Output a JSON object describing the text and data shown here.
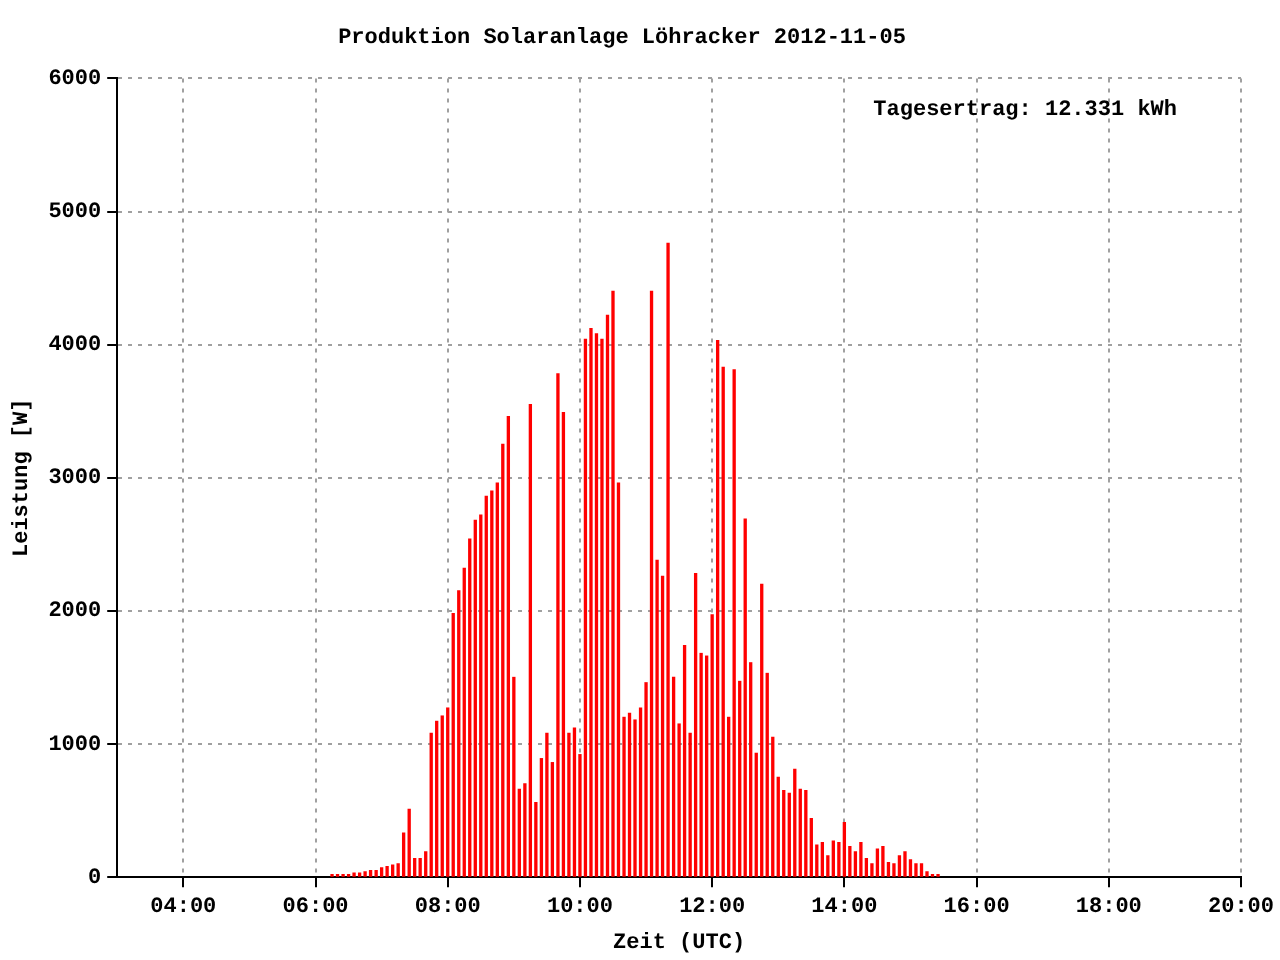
{
  "chart_data": {
    "type": "bar",
    "title": "Produktion Solaranlage Löhracker 2012-11-05",
    "xlabel": "Zeit (UTC)",
    "ylabel": "Leistung [W]",
    "annotations": [
      "Tagesertrag: 12.331 kWh"
    ],
    "x": [
      6.25,
      6.333,
      6.417,
      6.5,
      6.583,
      6.667,
      6.75,
      6.833,
      6.917,
      7.0,
      7.083,
      7.167,
      7.25,
      7.333,
      7.417,
      7.5,
      7.583,
      7.667,
      7.75,
      7.833,
      7.917,
      8.0,
      8.083,
      8.167,
      8.25,
      8.333,
      8.417,
      8.5,
      8.583,
      8.667,
      8.75,
      8.833,
      8.917,
      9.0,
      9.083,
      9.167,
      9.25,
      9.333,
      9.417,
      9.5,
      9.583,
      9.667,
      9.75,
      9.833,
      9.917,
      10.0,
      10.083,
      10.167,
      10.25,
      10.333,
      10.417,
      10.5,
      10.583,
      10.667,
      10.75,
      10.833,
      10.917,
      11.0,
      11.083,
      11.167,
      11.25,
      11.333,
      11.417,
      11.5,
      11.583,
      11.667,
      11.75,
      11.833,
      11.917,
      12.0,
      12.083,
      12.167,
      12.25,
      12.333,
      12.417,
      12.5,
      12.583,
      12.667,
      12.75,
      12.833,
      12.917,
      13.0,
      13.083,
      13.167,
      13.25,
      13.333,
      13.417,
      13.5,
      13.583,
      13.667,
      13.75,
      13.833,
      13.917,
      14.0,
      14.083,
      14.167,
      14.25,
      14.333,
      14.417,
      14.5,
      14.583,
      14.667,
      14.75,
      14.833,
      14.917,
      15.0,
      15.083,
      15.167,
      15.25,
      15.333,
      15.417
    ],
    "series": [
      {
        "color": "#ff0000",
        "values": [
          20,
          20,
          20,
          20,
          30,
          30,
          40,
          50,
          50,
          70,
          80,
          90,
          100,
          330,
          510,
          140,
          140,
          190,
          1080,
          1170,
          1210,
          1270,
          1980,
          2150,
          2320,
          2540,
          2680,
          2720,
          2860,
          2900,
          2960,
          3250,
          3460,
          1500,
          660,
          700,
          3550,
          560,
          890,
          1080,
          860,
          3780,
          3490,
          1080,
          1120,
          920,
          4040,
          4120,
          4080,
          4040,
          4220,
          4400,
          2960,
          1200,
          1230,
          1180,
          1270,
          1460,
          4400,
          2380,
          2260,
          4760,
          1500,
          1150,
          1740,
          1080,
          2280,
          1680,
          1660,
          1970,
          4030,
          3830,
          1200,
          3810,
          1470,
          2690,
          1610,
          930,
          2200,
          1530,
          1050,
          750,
          650,
          630,
          810,
          660,
          650,
          440,
          240,
          260,
          160,
          270,
          260,
          410,
          230,
          190,
          260,
          140,
          100,
          210,
          230,
          110,
          100,
          160,
          190,
          130,
          100,
          100,
          40,
          20,
          20
        ]
      }
    ],
    "xlim": [
      3,
      20
    ],
    "xticks": [
      {
        "value": 4,
        "label": "04:00"
      },
      {
        "value": 6,
        "label": "06:00"
      },
      {
        "value": 8,
        "label": "08:00"
      },
      {
        "value": 10,
        "label": "10:00"
      },
      {
        "value": 12,
        "label": "12:00"
      },
      {
        "value": 14,
        "label": "14:00"
      },
      {
        "value": 16,
        "label": "16:00"
      },
      {
        "value": 18,
        "label": "18:00"
      },
      {
        "value": 20,
        "label": "20:00"
      }
    ],
    "ylim": [
      0,
      6000
    ],
    "yticks": [
      0,
      1000,
      2000,
      3000,
      4000,
      5000,
      6000
    ],
    "grid": true
  }
}
